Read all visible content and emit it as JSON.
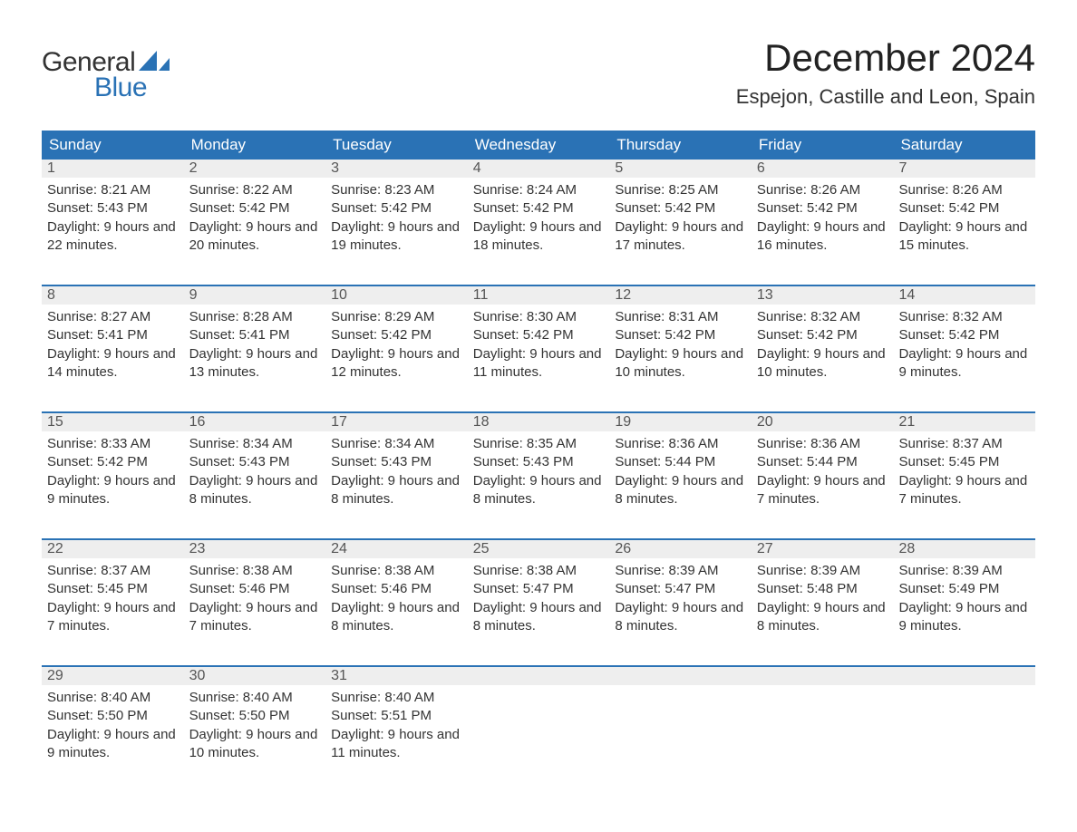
{
  "brand": {
    "word1": "General",
    "word2": "Blue",
    "word1_color": "#333333",
    "word2_color": "#2a72b5",
    "sail_color": "#2a72b5"
  },
  "title": "December 2024",
  "location": "Espejon, Castille and Leon, Spain",
  "colors": {
    "header_bg": "#2a72b5",
    "header_text": "#ffffff",
    "daynum_bg": "#eeeeee",
    "row_divider": "#2a72b5",
    "body_text": "#333333",
    "background": "#ffffff"
  },
  "fonts": {
    "title_size_pt": 32,
    "location_size_pt": 17,
    "header_size_pt": 13,
    "cell_size_pt": 11
  },
  "day_names": [
    "Sunday",
    "Monday",
    "Tuesday",
    "Wednesday",
    "Thursday",
    "Friday",
    "Saturday"
  ],
  "labels": {
    "sunrise": "Sunrise:",
    "sunset": "Sunset:",
    "daylight": "Daylight:"
  },
  "weeks": [
    [
      {
        "day": "1",
        "sunrise": "8:21 AM",
        "sunset": "5:43 PM",
        "daylight": "9 hours and 22 minutes."
      },
      {
        "day": "2",
        "sunrise": "8:22 AM",
        "sunset": "5:42 PM",
        "daylight": "9 hours and 20 minutes."
      },
      {
        "day": "3",
        "sunrise": "8:23 AM",
        "sunset": "5:42 PM",
        "daylight": "9 hours and 19 minutes."
      },
      {
        "day": "4",
        "sunrise": "8:24 AM",
        "sunset": "5:42 PM",
        "daylight": "9 hours and 18 minutes."
      },
      {
        "day": "5",
        "sunrise": "8:25 AM",
        "sunset": "5:42 PM",
        "daylight": "9 hours and 17 minutes."
      },
      {
        "day": "6",
        "sunrise": "8:26 AM",
        "sunset": "5:42 PM",
        "daylight": "9 hours and 16 minutes."
      },
      {
        "day": "7",
        "sunrise": "8:26 AM",
        "sunset": "5:42 PM",
        "daylight": "9 hours and 15 minutes."
      }
    ],
    [
      {
        "day": "8",
        "sunrise": "8:27 AM",
        "sunset": "5:41 PM",
        "daylight": "9 hours and 14 minutes."
      },
      {
        "day": "9",
        "sunrise": "8:28 AM",
        "sunset": "5:41 PM",
        "daylight": "9 hours and 13 minutes."
      },
      {
        "day": "10",
        "sunrise": "8:29 AM",
        "sunset": "5:42 PM",
        "daylight": "9 hours and 12 minutes."
      },
      {
        "day": "11",
        "sunrise": "8:30 AM",
        "sunset": "5:42 PM",
        "daylight": "9 hours and 11 minutes."
      },
      {
        "day": "12",
        "sunrise": "8:31 AM",
        "sunset": "5:42 PM",
        "daylight": "9 hours and 10 minutes."
      },
      {
        "day": "13",
        "sunrise": "8:32 AM",
        "sunset": "5:42 PM",
        "daylight": "9 hours and 10 minutes."
      },
      {
        "day": "14",
        "sunrise": "8:32 AM",
        "sunset": "5:42 PM",
        "daylight": "9 hours and 9 minutes."
      }
    ],
    [
      {
        "day": "15",
        "sunrise": "8:33 AM",
        "sunset": "5:42 PM",
        "daylight": "9 hours and 9 minutes."
      },
      {
        "day": "16",
        "sunrise": "8:34 AM",
        "sunset": "5:43 PM",
        "daylight": "9 hours and 8 minutes."
      },
      {
        "day": "17",
        "sunrise": "8:34 AM",
        "sunset": "5:43 PM",
        "daylight": "9 hours and 8 minutes."
      },
      {
        "day": "18",
        "sunrise": "8:35 AM",
        "sunset": "5:43 PM",
        "daylight": "9 hours and 8 minutes."
      },
      {
        "day": "19",
        "sunrise": "8:36 AM",
        "sunset": "5:44 PM",
        "daylight": "9 hours and 8 minutes."
      },
      {
        "day": "20",
        "sunrise": "8:36 AM",
        "sunset": "5:44 PM",
        "daylight": "9 hours and 7 minutes."
      },
      {
        "day": "21",
        "sunrise": "8:37 AM",
        "sunset": "5:45 PM",
        "daylight": "9 hours and 7 minutes."
      }
    ],
    [
      {
        "day": "22",
        "sunrise": "8:37 AM",
        "sunset": "5:45 PM",
        "daylight": "9 hours and 7 minutes."
      },
      {
        "day": "23",
        "sunrise": "8:38 AM",
        "sunset": "5:46 PM",
        "daylight": "9 hours and 7 minutes."
      },
      {
        "day": "24",
        "sunrise": "8:38 AM",
        "sunset": "5:46 PM",
        "daylight": "9 hours and 8 minutes."
      },
      {
        "day": "25",
        "sunrise": "8:38 AM",
        "sunset": "5:47 PM",
        "daylight": "9 hours and 8 minutes."
      },
      {
        "day": "26",
        "sunrise": "8:39 AM",
        "sunset": "5:47 PM",
        "daylight": "9 hours and 8 minutes."
      },
      {
        "day": "27",
        "sunrise": "8:39 AM",
        "sunset": "5:48 PM",
        "daylight": "9 hours and 8 minutes."
      },
      {
        "day": "28",
        "sunrise": "8:39 AM",
        "sunset": "5:49 PM",
        "daylight": "9 hours and 9 minutes."
      }
    ],
    [
      {
        "day": "29",
        "sunrise": "8:40 AM",
        "sunset": "5:50 PM",
        "daylight": "9 hours and 9 minutes."
      },
      {
        "day": "30",
        "sunrise": "8:40 AM",
        "sunset": "5:50 PM",
        "daylight": "9 hours and 10 minutes."
      },
      {
        "day": "31",
        "sunrise": "8:40 AM",
        "sunset": "5:51 PM",
        "daylight": "9 hours and 11 minutes."
      },
      {
        "empty": true
      },
      {
        "empty": true
      },
      {
        "empty": true
      },
      {
        "empty": true
      }
    ]
  ]
}
